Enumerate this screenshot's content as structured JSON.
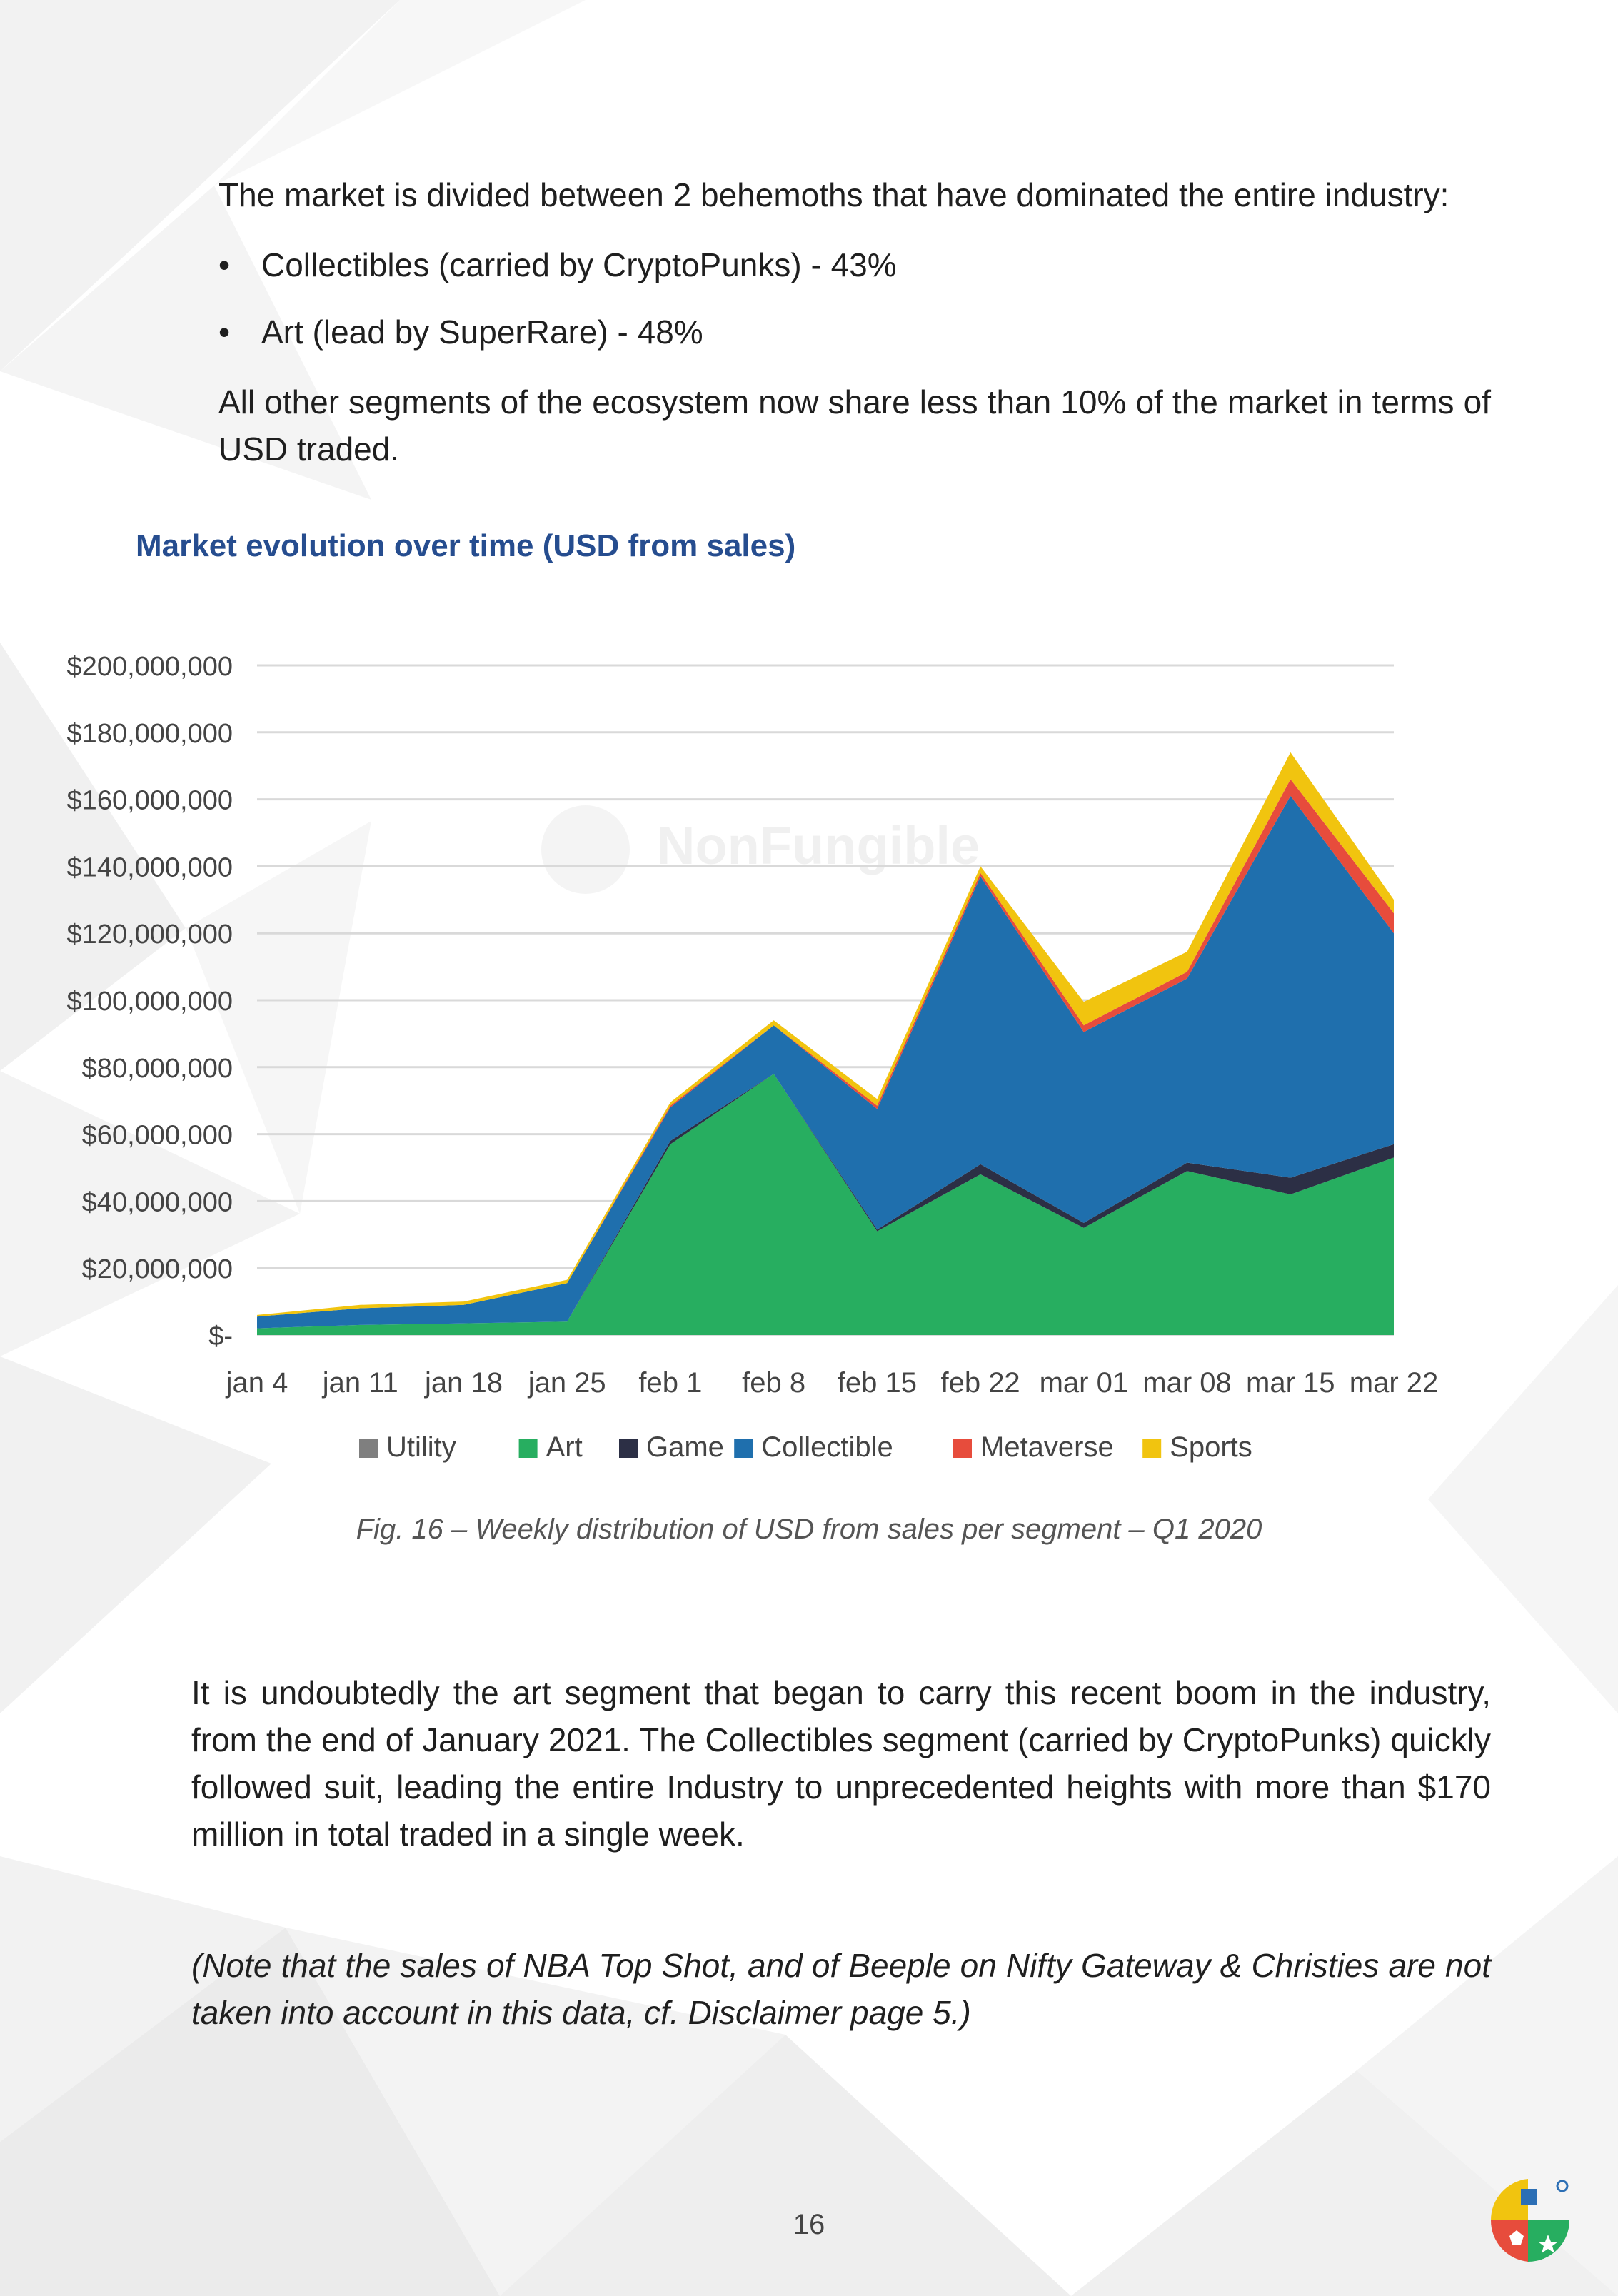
{
  "text": {
    "intro": "The market is divided between 2 behemoths that have dominated the entire industry:",
    "bullets": [
      "Collectibles (carried by CryptoPunks) - 43%",
      "Art (lead by SuperRare) - 48%"
    ],
    "other_segments": "All other segments of the ecosystem now share less than 10% of the market in terms of USD traded.",
    "chart_title": "Market evolution over time (USD from sales)",
    "caption": "Fig. 16 – Weekly distribution of USD from sales per segment – Q1 2020",
    "art_paragraph": "It is undoubtedly the art segment that began to carry this recent boom in the industry, from the end of January 2021. The Collectibles segment (carried by CryptoPunks) quickly followed suit, leading the entire Industry to unprecedented heights with more than $170 million in total traded in a single week.",
    "note": "(Note that the sales of NBA Top Shot, and of Beeple on Nifty Gateway & Christies are not taken into account in this data, cf. Disclaimer page 5.)",
    "page_number": "16",
    "watermark": "NonFungible"
  },
  "chart_data": {
    "type": "area",
    "stacked": true,
    "categories": [
      "jan 4",
      "jan 11",
      "jan 18",
      "jan 25",
      "feb 1",
      "feb 8",
      "feb 15",
      "feb 22",
      "mar 01",
      "mar 08",
      "mar 15",
      "mar 22"
    ],
    "series": [
      {
        "name": "Utility",
        "color": "#7f7f7f",
        "values": [
          0,
          0,
          0,
          0,
          0,
          0,
          0,
          0,
          0,
          0,
          0,
          0
        ]
      },
      {
        "name": "Art",
        "color": "#27ae60",
        "values": [
          2000000,
          3000000,
          3500000,
          4000000,
          57000000,
          78000000,
          31000000,
          48000000,
          32000000,
          49000000,
          42000000,
          53000000
        ]
      },
      {
        "name": "Game",
        "color": "#2c2f45",
        "values": [
          0,
          0,
          0,
          0,
          1000000,
          0,
          500000,
          3000000,
          1500000,
          2500000,
          5000000,
          4000000
        ]
      },
      {
        "name": "Collectible",
        "color": "#1f6fad",
        "values": [
          3500000,
          5000000,
          5500000,
          11500000,
          10000000,
          14500000,
          36000000,
          86000000,
          57000000,
          55000000,
          114000000,
          63000000
        ]
      },
      {
        "name": "Metaverse",
        "color": "#e74c3c",
        "values": [
          0,
          0,
          0,
          0,
          500000,
          0,
          1000000,
          1000000,
          2000000,
          2000000,
          5000000,
          6000000
        ]
      },
      {
        "name": "Sports",
        "color": "#f1c40f",
        "values": [
          500000,
          1000000,
          1000000,
          1000000,
          1000000,
          1500000,
          2000000,
          2000000,
          7000000,
          6000000,
          8000000,
          4000000
        ]
      }
    ],
    "ylim": [
      0,
      200000000
    ],
    "yticks": [
      0,
      20000000,
      40000000,
      60000000,
      80000000,
      100000000,
      120000000,
      140000000,
      160000000,
      180000000,
      200000000
    ],
    "ytick_labels": [
      "$-",
      "$20,000,000",
      "$40,000,000",
      "$60,000,000",
      "$80,000,000",
      "$100,000,000",
      "$120,000,000",
      "$140,000,000",
      "$160,000,000",
      "$180,000,000",
      "$200,000,000"
    ],
    "grid": true,
    "legend_position": "bottom"
  }
}
